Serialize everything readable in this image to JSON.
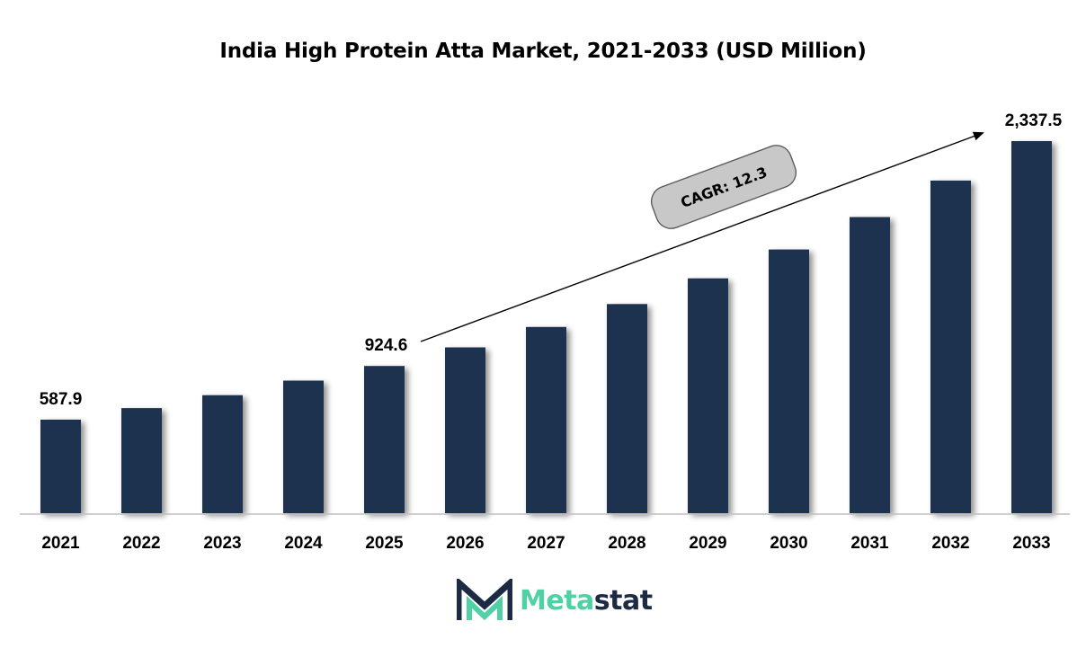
{
  "title": "India High Protein Atta Market, 2021-2033 (USD Million)",
  "colors": {
    "bar": "#1b3350",
    "axis": "#bfbfbf",
    "cagr_box": "#c8c8c8",
    "logo_accent": "#4fd1a5",
    "logo_dark": "#1d2a44"
  },
  "chart_data": {
    "type": "bar",
    "title": "India High Protein Atta Market, 2021-2033 (USD Million)",
    "categories": [
      "2021",
      "2022",
      "2023",
      "2024",
      "2025",
      "2026",
      "2027",
      "2028",
      "2029",
      "2030",
      "2031",
      "2032",
      "2033"
    ],
    "values": [
      587.9,
      660.2,
      741.5,
      832.7,
      924.6,
      1041.7,
      1169.8,
      1313.7,
      1475.3,
      1656.8,
      1860.6,
      2089.5,
      2337.5
    ],
    "data_labels": {
      "2021": "587.9",
      "2025": "924.6",
      "2033": "2,337.5"
    },
    "ylim": [
      0,
      2337.5
    ],
    "grid": false,
    "annotation": "CAGR: 12.3"
  },
  "logo": {
    "part1": "Meta",
    "part2": "stat",
    "icon": "metastat-m-logo-icon"
  }
}
